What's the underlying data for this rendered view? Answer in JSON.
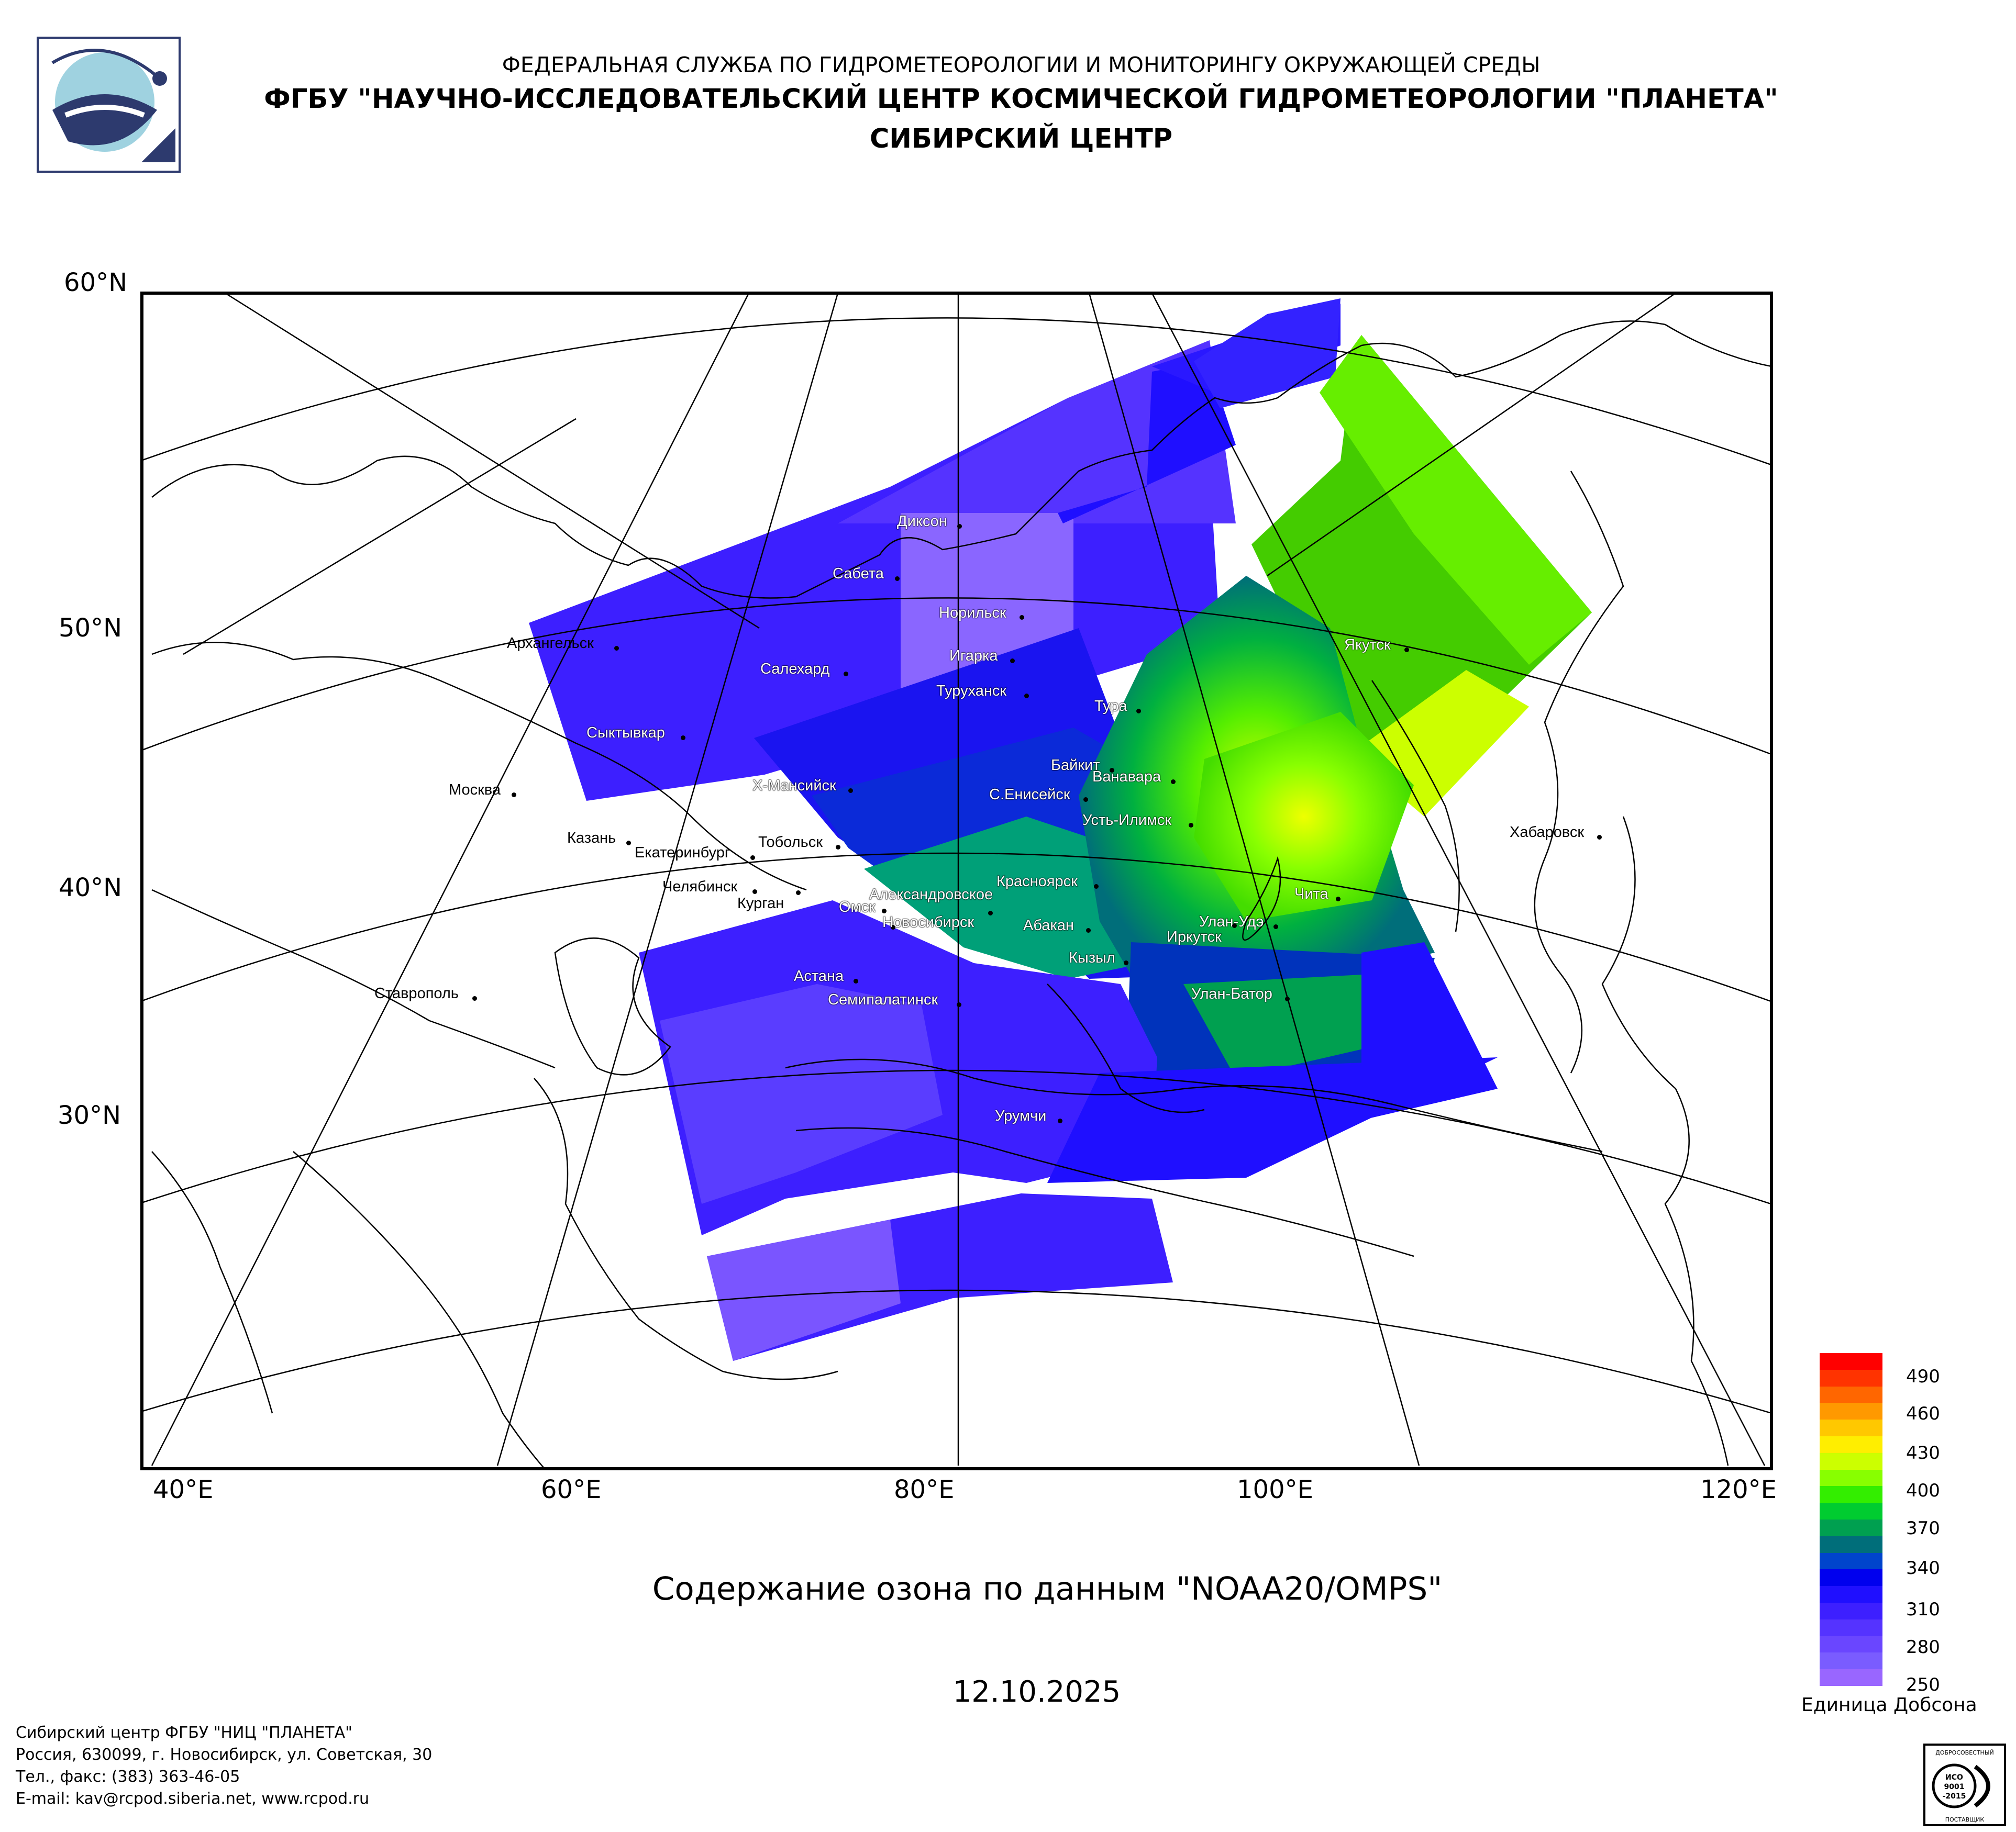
{
  "header": {
    "line1": "ФЕДЕРАЛЬНАЯ СЛУЖБА ПО ГИДРОМЕТЕОРОЛОГИИ И МОНИТОРИНГУ ОКРУЖАЮЩЕЙ СРЕДЫ",
    "line2": "ФГБУ \"НАУЧНО-ИССЛЕДОВАТЕЛЬСКИЙ ЦЕНТР КОСМИЧЕСКОЙ ГИДРОМЕТЕОРОЛОГИИ \"ПЛАНЕТА\"",
    "line3": "СИБИРСКИЙ ЦЕНТР"
  },
  "map": {
    "lat_labels": [
      "60°N",
      "50°N",
      "40°N",
      "30°N"
    ],
    "lon_labels": [
      "40°E",
      "60°E",
      "80°E",
      "100°E",
      "120°E"
    ],
    "cities": [
      "Диксон",
      "Сабета",
      "Норильск",
      "Архангельск",
      "Салехард",
      "Игарка",
      "Туруханск",
      "Тура",
      "Якутск",
      "Сыктывкар",
      "Байкит",
      "Ванавара",
      "Москва",
      "Х-Мансийск",
      "С.Енисейск",
      "Усть-Илимск",
      "Казань",
      "Екатеринбург",
      "Тобольск",
      "Хабаровск",
      "Челябинск",
      "Красноярск",
      "Александровское",
      "Курган",
      "Омск",
      "Чита",
      "Улан-Удэ",
      "Новосибирск",
      "Абакан",
      "Иркутск",
      "Кызыл",
      "Астана",
      "Ставрополь",
      "Семипалатинск",
      "Улан-Батор",
      "Урумчи"
    ]
  },
  "title": "Содержание озона по данным \"NOAA20/OMPS\"",
  "date": "12.10.2025",
  "legend": {
    "unit": "Единица Добсона",
    "ticks": [
      "490",
      "460",
      "430",
      "400",
      "370",
      "340",
      "310",
      "280",
      "250"
    ],
    "colors": [
      "#9966ff",
      "#7a5cff",
      "#6a46ff",
      "#5533ff",
      "#3d1fff",
      "#1f0fff",
      "#0000ee",
      "#0044cc",
      "#006e7a",
      "#00a050",
      "#00cc30",
      "#33ee00",
      "#88ff00",
      "#ccff00",
      "#ffee00",
      "#ffc800",
      "#ff9900",
      "#ff6600",
      "#ff3300",
      "#ff0000"
    ]
  },
  "footer": {
    "line1": "Сибирский центр ФГБУ \"НИЦ \"ПЛАНЕТА\"",
    "line2": "Россия, 630099, г. Новосибирск, ул. Советская, 30",
    "line3": "Тел., факс: (383) 363-46-05",
    "line4": "E-mail: kav@rcpod.siberia.net, www.rcpod.ru"
  },
  "iso_badge": [
    "ДОБРОСОВЕСТНЫЙ",
    "ИСО",
    "9001",
    "-2015",
    "ПОСТАВЩИК"
  ]
}
